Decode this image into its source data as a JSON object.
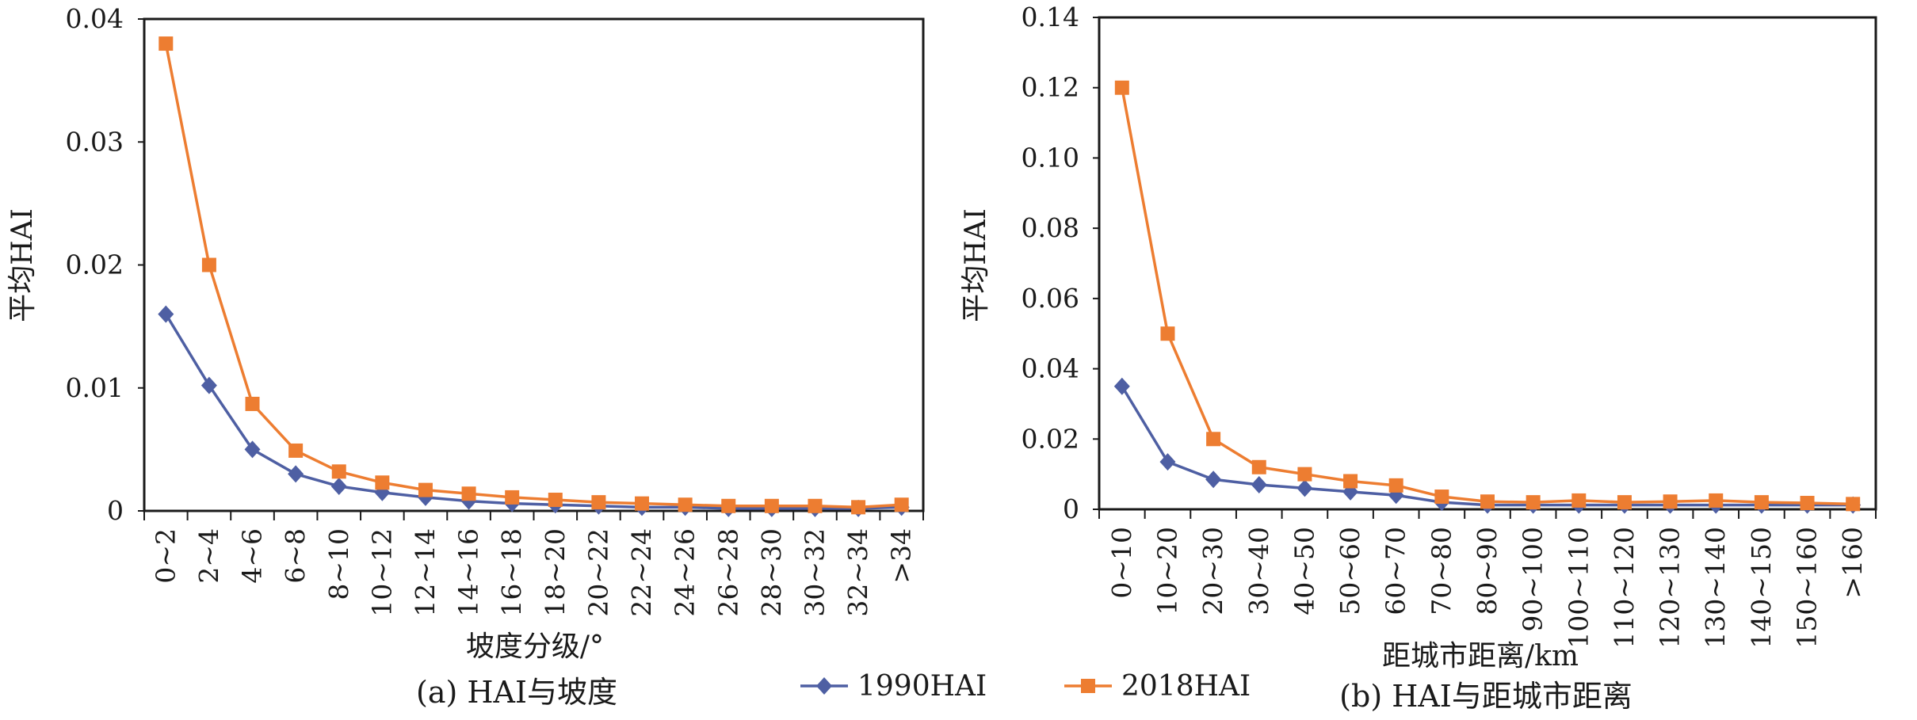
{
  "chart_data": [
    {
      "type": "line",
      "caption": "(a) HAI与坡度",
      "xlabel": "坡度分级/°",
      "ylabel": "平均HAI",
      "ylim": [
        0,
        0.04
      ],
      "yticks": [
        "0",
        "0.01",
        "0.02",
        "0.03",
        "0.04"
      ],
      "categories": [
        "0~2",
        "2~4",
        "4~6",
        "6~8",
        "8~10",
        "10~12",
        "12~14",
        "14~16",
        "16~18",
        "18~20",
        "20~22",
        "22~24",
        "24~26",
        "26~28",
        "28~30",
        "30~32",
        "32~34",
        ">34"
      ],
      "series": [
        {
          "name": "1990HAI",
          "color": "#4e5fa3",
          "marker": "diamond",
          "values": [
            0.016,
            0.0102,
            0.005,
            0.003,
            0.002,
            0.0015,
            0.0011,
            0.0008,
            0.0006,
            0.0005,
            0.0004,
            0.0003,
            0.0003,
            0.0002,
            0.0002,
            0.0002,
            0.0002,
            0.0003
          ]
        },
        {
          "name": "2018HAI",
          "color": "#ed7d31",
          "marker": "square",
          "values": [
            0.038,
            0.02,
            0.0087,
            0.0049,
            0.0032,
            0.0023,
            0.0017,
            0.0014,
            0.0011,
            0.0009,
            0.0007,
            0.0006,
            0.0005,
            0.0004,
            0.0004,
            0.0004,
            0.0003,
            0.0005
          ]
        }
      ]
    },
    {
      "type": "line",
      "caption": "(b) HAI与距城市距离",
      "xlabel": "距城市距离/km",
      "ylabel": "平均HAI",
      "ylim": [
        0,
        0.14
      ],
      "yticks": [
        "0",
        "0.02",
        "0.04",
        "0.06",
        "0.08",
        "0.10",
        "0.12",
        "0.14"
      ],
      "categories": [
        "0~10",
        "10~20",
        "20~30",
        "30~40",
        "40~50",
        "50~60",
        "60~70",
        "70~80",
        "80~90",
        "90~100",
        "100~110",
        "110~120",
        "120~130",
        "130~140",
        "140~150",
        "150~160",
        ">160"
      ],
      "series": [
        {
          "name": "1990HAI",
          "color": "#4e5fa3",
          "marker": "diamond",
          "values": [
            0.035,
            0.0135,
            0.0085,
            0.007,
            0.006,
            0.005,
            0.004,
            0.002,
            0.0012,
            0.0012,
            0.0012,
            0.0012,
            0.0012,
            0.0012,
            0.0012,
            0.0012,
            0.0012
          ]
        },
        {
          "name": "2018HAI",
          "color": "#ed7d31",
          "marker": "square",
          "values": [
            0.12,
            0.05,
            0.02,
            0.012,
            0.01,
            0.008,
            0.0068,
            0.0036,
            0.0022,
            0.002,
            0.0025,
            0.002,
            0.0022,
            0.0025,
            0.002,
            0.0018,
            0.0015
          ]
        }
      ]
    }
  ],
  "legend": {
    "position": "bottom-center",
    "items": [
      {
        "label": "1990HAI",
        "color": "#4e5fa3",
        "marker": "diamond"
      },
      {
        "label": "2018HAI",
        "color": "#ed7d31",
        "marker": "square"
      }
    ]
  }
}
